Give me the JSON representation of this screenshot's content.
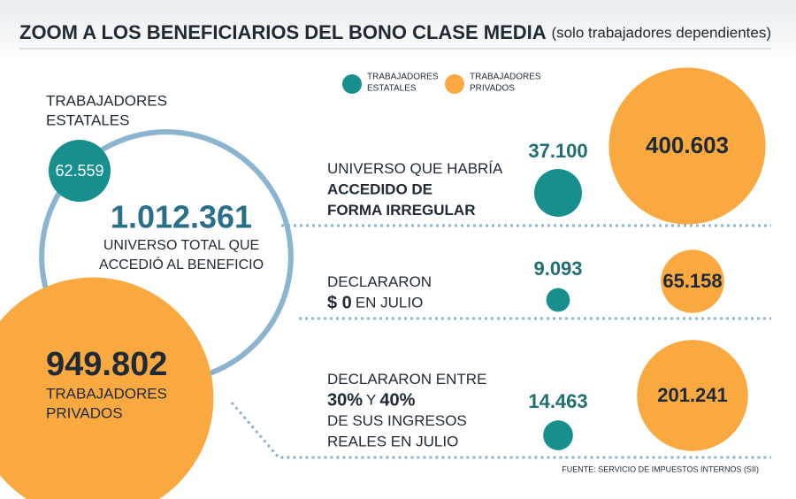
{
  "header": {
    "title": "ZOOM A LOS BENEFICIARIOS DEL BONO CLASE MEDIA",
    "subtitle": "(solo trabajadores dependientes)"
  },
  "legend": [
    {
      "lines": [
        "TRABAJADORES",
        "ESTATALES"
      ],
      "color": "#178f8f"
    },
    {
      "lines": [
        "TRABAJADORES",
        "PRIVADOS"
      ],
      "color": "#f9a93f"
    }
  ],
  "estatales": {
    "lines": [
      "TRABAJADORES",
      "ESTATALES"
    ],
    "value": 62559,
    "label": "62.559"
  },
  "total": {
    "value": 1012361,
    "label": "1.012.361",
    "lines": [
      "UNIVERSO TOTAL QUE",
      "ACCEDIÓ AL BENEFICIO"
    ]
  },
  "privados": {
    "value": 949802,
    "label": "949.802",
    "lines": [
      "TRABAJADORES",
      "PRIVADOS"
    ]
  },
  "rows": [
    {
      "lines": [
        [
          {
            "t": "UNIVERSO QUE HABRÍA"
          }
        ],
        [
          {
            "t": "ACCEDIDO DE",
            "bold": true
          }
        ],
        [
          {
            "t": "FORMA IRREGULAR",
            "bold": true
          }
        ]
      ],
      "estatales": {
        "value": 37100,
        "label": "37.100"
      },
      "privados": {
        "value": 400603,
        "label": "400.603"
      }
    },
    {
      "lines": [
        [
          {
            "t": "DECLARARON"
          }
        ],
        [
          {
            "t": "$ 0",
            "bold": true
          },
          {
            "t": "EN JULIO"
          }
        ]
      ],
      "estatales": {
        "value": 9093,
        "label": "9.093"
      },
      "privados": {
        "value": 65158,
        "label": "65.158"
      }
    },
    {
      "lines": [
        [
          {
            "t": "DECLARARON ENTRE"
          }
        ],
        [
          {
            "t": "30%",
            "bold": true
          },
          {
            "t": "Y"
          },
          {
            "t": "40%",
            "bold": true
          }
        ],
        [
          {
            "t": "DE SUS INGRESOS"
          }
        ],
        [
          {
            "t": "REALES EN JULIO"
          }
        ]
      ],
      "estatales": {
        "value": 14463,
        "label": "14.463"
      },
      "privados": {
        "value": 201241,
        "label": "201.241"
      }
    }
  ],
  "source": "FUENTE: SERVICIO DE IMPUESTOS INTERNOS (SII)"
}
